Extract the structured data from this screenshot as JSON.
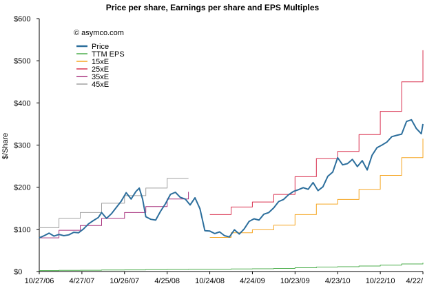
{
  "chart_data": {
    "type": "line",
    "title": "Price per share, Earnings per share and EPS Multiples",
    "subtitle": "© asymco.com",
    "xlabel": "",
    "ylabel": "$/Share",
    "ylim": [
      0,
      600
    ],
    "y_ticks": [
      {
        "value": 0,
        "label": "$0"
      },
      {
        "value": 100,
        "label": "$100"
      },
      {
        "value": 200,
        "label": "$200"
      },
      {
        "value": 300,
        "label": "$300"
      },
      {
        "value": 400,
        "label": "$400"
      },
      {
        "value": 500,
        "label": "$500"
      },
      {
        "value": 600,
        "label": "$600"
      }
    ],
    "x_range": [
      "2006-10-27",
      "2011-04-22"
    ],
    "x_ticks": [
      {
        "date": "2006-10-27",
        "label": "10/27/06"
      },
      {
        "date": "2007-04-27",
        "label": "4/27/07"
      },
      {
        "date": "2007-10-26",
        "label": "10/26/07"
      },
      {
        "date": "2008-04-25",
        "label": "4/25/08"
      },
      {
        "date": "2008-10-24",
        "label": "10/24/08"
      },
      {
        "date": "2009-04-24",
        "label": "4/24/09"
      },
      {
        "date": "2009-10-23",
        "label": "10/23/09"
      },
      {
        "date": "2010-04-23",
        "label": "4/23/10"
      },
      {
        "date": "2010-10-22",
        "label": "10/22/10"
      },
      {
        "date": "2011-04-22",
        "label": "4/22/"
      }
    ],
    "grid": false,
    "legend_position": "top-left",
    "series": [
      {
        "name": "Price",
        "color": "#2c6e9c",
        "style": "line",
        "points": [
          [
            "2006-10-27",
            80
          ],
          [
            "2006-11-17",
            85
          ],
          [
            "2006-12-08",
            91
          ],
          [
            "2006-12-29",
            84
          ],
          [
            "2007-01-19",
            88
          ],
          [
            "2007-02-09",
            85
          ],
          [
            "2007-03-02",
            87
          ],
          [
            "2007-03-23",
            93
          ],
          [
            "2007-04-13",
            92
          ],
          [
            "2007-05-04",
            101
          ],
          [
            "2007-05-25",
            113
          ],
          [
            "2007-06-15",
            121
          ],
          [
            "2007-07-06",
            128
          ],
          [
            "2007-07-20",
            140
          ],
          [
            "2007-08-10",
            126
          ],
          [
            "2007-08-31",
            137
          ],
          [
            "2007-09-21",
            152
          ],
          [
            "2007-10-12",
            167
          ],
          [
            "2007-11-02",
            187
          ],
          [
            "2007-11-23",
            172
          ],
          [
            "2007-12-14",
            190
          ],
          [
            "2007-12-28",
            198
          ],
          [
            "2008-01-11",
            172
          ],
          [
            "2008-01-25",
            130
          ],
          [
            "2008-02-15",
            124
          ],
          [
            "2008-03-07",
            122
          ],
          [
            "2008-03-28",
            143
          ],
          [
            "2008-04-18",
            161
          ],
          [
            "2008-05-09",
            183
          ],
          [
            "2008-05-30",
            188
          ],
          [
            "2008-06-20",
            176
          ],
          [
            "2008-07-11",
            172
          ],
          [
            "2008-08-01",
            158
          ],
          [
            "2008-08-22",
            175
          ],
          [
            "2008-09-12",
            149
          ],
          [
            "2008-10-03",
            97
          ],
          [
            "2008-10-24",
            96
          ],
          [
            "2008-11-14",
            90
          ],
          [
            "2008-12-05",
            94
          ],
          [
            "2008-12-26",
            85
          ],
          [
            "2009-01-16",
            82
          ],
          [
            "2009-02-06",
            99
          ],
          [
            "2009-02-27",
            89
          ],
          [
            "2009-03-20",
            101
          ],
          [
            "2009-04-10",
            119
          ],
          [
            "2009-05-01",
            125
          ],
          [
            "2009-05-22",
            122
          ],
          [
            "2009-06-12",
            136
          ],
          [
            "2009-07-03",
            140
          ],
          [
            "2009-07-24",
            151
          ],
          [
            "2009-08-14",
            166
          ],
          [
            "2009-09-04",
            171
          ],
          [
            "2009-09-25",
            182
          ],
          [
            "2009-10-16",
            190
          ],
          [
            "2009-11-06",
            194
          ],
          [
            "2009-11-27",
            199
          ],
          [
            "2009-12-18",
            195
          ],
          [
            "2010-01-08",
            211
          ],
          [
            "2010-01-29",
            192
          ],
          [
            "2010-02-19",
            201
          ],
          [
            "2010-03-12",
            226
          ],
          [
            "2010-04-02",
            236
          ],
          [
            "2010-04-23",
            270
          ],
          [
            "2010-05-14",
            253
          ],
          [
            "2010-06-04",
            256
          ],
          [
            "2010-06-25",
            266
          ],
          [
            "2010-07-16",
            249
          ],
          [
            "2010-08-06",
            263
          ],
          [
            "2010-08-27",
            241
          ],
          [
            "2010-09-17",
            276
          ],
          [
            "2010-10-08",
            294
          ],
          [
            "2010-10-29",
            300
          ],
          [
            "2010-11-19",
            307
          ],
          [
            "2010-12-10",
            320
          ],
          [
            "2010-12-31",
            323
          ],
          [
            "2011-01-21",
            326
          ],
          [
            "2011-02-11",
            356
          ],
          [
            "2011-03-04",
            360
          ],
          [
            "2011-03-25",
            339
          ],
          [
            "2011-04-15",
            327
          ],
          [
            "2011-04-22",
            350
          ]
        ]
      },
      {
        "name": "TTM EPS",
        "color": "#4cae4c",
        "style": "step",
        "points": [
          [
            "2006-10-27",
            2.3
          ],
          [
            "2007-01-19",
            2.8
          ],
          [
            "2007-04-20",
            3.1
          ],
          [
            "2007-07-20",
            3.6
          ],
          [
            "2007-10-26",
            4.0
          ],
          [
            "2008-01-25",
            4.4
          ],
          [
            "2008-04-25",
            4.9
          ],
          [
            "2008-07-25",
            5.4
          ],
          [
            "2008-10-24",
            5.4
          ],
          [
            "2009-01-23",
            6.1
          ],
          [
            "2009-04-24",
            6.6
          ],
          [
            "2009-07-24",
            7.3
          ],
          [
            "2009-10-23",
            9.0
          ],
          [
            "2010-01-22",
            10.7
          ],
          [
            "2010-04-23",
            11.4
          ],
          [
            "2010-07-23",
            13.0
          ],
          [
            "2010-10-22",
            15.2
          ],
          [
            "2011-01-21",
            18.0
          ],
          [
            "2011-04-22",
            21.0
          ]
        ]
      },
      {
        "name": "15xE",
        "color": "#f5a623",
        "style": "step",
        "points": [
          [
            "2008-10-24",
            81
          ],
          [
            "2009-01-23",
            92
          ],
          [
            "2009-04-24",
            99
          ],
          [
            "2009-07-24",
            110
          ],
          [
            "2009-10-23",
            135
          ],
          [
            "2010-01-22",
            160
          ],
          [
            "2010-04-23",
            171
          ],
          [
            "2010-07-23",
            195
          ],
          [
            "2010-10-22",
            228
          ],
          [
            "2011-01-21",
            270
          ],
          [
            "2011-04-22",
            315
          ]
        ]
      },
      {
        "name": "25xE",
        "color": "#d9304f",
        "style": "step",
        "points": [
          [
            "2008-10-24",
            135
          ],
          [
            "2009-01-23",
            153
          ],
          [
            "2009-04-24",
            165
          ],
          [
            "2009-07-24",
            183
          ],
          [
            "2009-10-23",
            225
          ],
          [
            "2010-01-22",
            268
          ],
          [
            "2010-04-23",
            285
          ],
          [
            "2010-07-23",
            325
          ],
          [
            "2010-10-22",
            380
          ],
          [
            "2011-01-21",
            450
          ],
          [
            "2011-04-22",
            525
          ]
        ]
      },
      {
        "name": "35xE",
        "color": "#a8337e",
        "style": "step",
        "points": [
          [
            "2006-10-27",
            80
          ],
          [
            "2007-01-19",
            98
          ],
          [
            "2007-04-20",
            109
          ],
          [
            "2007-07-20",
            126
          ],
          [
            "2007-10-26",
            140
          ],
          [
            "2008-01-25",
            154
          ],
          [
            "2008-04-25",
            172
          ],
          [
            "2008-07-25",
            189
          ]
        ]
      },
      {
        "name": "45xE",
        "color": "#a0a0a0",
        "style": "step",
        "points": [
          [
            "2006-10-27",
            104
          ],
          [
            "2007-01-19",
            126
          ],
          [
            "2007-04-20",
            140
          ],
          [
            "2007-07-20",
            162
          ],
          [
            "2007-10-26",
            180
          ],
          [
            "2008-01-25",
            198
          ],
          [
            "2008-04-25",
            221
          ],
          [
            "2008-07-25",
            221
          ]
        ]
      }
    ]
  }
}
